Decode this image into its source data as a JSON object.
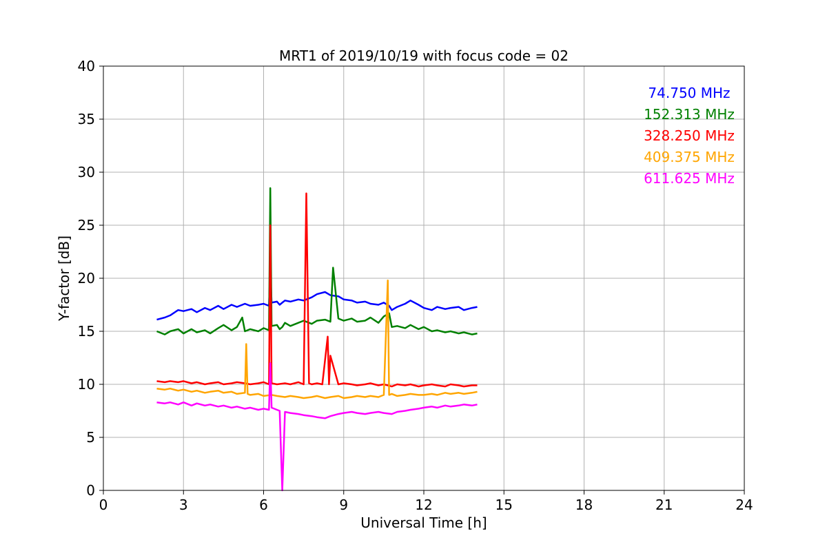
{
  "chart_data": {
    "type": "line",
    "title": "MRT1 of 2019/10/19 with focus code = 02",
    "xlabel": "Universal Time [h]",
    "ylabel": "Y-factor [dB]",
    "xlim": [
      0,
      24
    ],
    "ylim": [
      0,
      40
    ],
    "xticks": [
      0,
      3,
      6,
      9,
      12,
      15,
      18,
      21,
      24
    ],
    "yticks": [
      0,
      5,
      10,
      15,
      20,
      25,
      30,
      35,
      40
    ],
    "grid": true,
    "legend_placement": "top-right",
    "series": [
      {
        "name": "74.750 MHz",
        "color": "#0000ff",
        "x": [
          2.0,
          2.3,
          2.5,
          2.8,
          3.0,
          3.3,
          3.5,
          3.8,
          4.0,
          4.3,
          4.5,
          4.8,
          5.0,
          5.3,
          5.5,
          5.8,
          6.0,
          6.2,
          6.25,
          6.3,
          6.5,
          6.6,
          6.7,
          6.8,
          7.0,
          7.3,
          7.5,
          7.8,
          8.0,
          8.3,
          8.5,
          8.8,
          9.0,
          9.3,
          9.5,
          9.8,
          10.0,
          10.3,
          10.5,
          10.7,
          10.8,
          11.0,
          11.3,
          11.5,
          11.8,
          12.0,
          12.3,
          12.5,
          12.8,
          13.0,
          13.3,
          13.5,
          13.8,
          14.0
        ],
        "y": [
          16.1,
          16.3,
          16.5,
          17.0,
          16.9,
          17.1,
          16.8,
          17.2,
          17.0,
          17.4,
          17.1,
          17.5,
          17.3,
          17.6,
          17.4,
          17.5,
          17.6,
          17.4,
          21.0,
          17.7,
          17.8,
          17.5,
          17.7,
          17.9,
          17.8,
          18.0,
          17.9,
          18.2,
          18.5,
          18.7,
          18.4,
          18.3,
          18.0,
          17.9,
          17.7,
          17.8,
          17.6,
          17.5,
          17.7,
          17.4,
          17.0,
          17.3,
          17.6,
          17.9,
          17.5,
          17.2,
          17.0,
          17.3,
          17.1,
          17.2,
          17.3,
          17.0,
          17.2,
          17.3
        ]
      },
      {
        "name": "152.313 MHz",
        "color": "#008000",
        "x": [
          2.0,
          2.3,
          2.5,
          2.8,
          3.0,
          3.3,
          3.5,
          3.8,
          4.0,
          4.3,
          4.5,
          4.8,
          5.0,
          5.2,
          5.3,
          5.5,
          5.8,
          6.0,
          6.2,
          6.25,
          6.3,
          6.5,
          6.6,
          6.7,
          6.8,
          7.0,
          7.3,
          7.5,
          7.8,
          8.0,
          8.3,
          8.5,
          8.6,
          8.8,
          9.0,
          9.3,
          9.5,
          9.8,
          10.0,
          10.3,
          10.5,
          10.7,
          10.8,
          11.0,
          11.3,
          11.5,
          11.8,
          12.0,
          12.3,
          12.5,
          12.8,
          13.0,
          13.3,
          13.5,
          13.8,
          14.0
        ],
        "y": [
          15.0,
          14.7,
          15.0,
          15.2,
          14.8,
          15.2,
          14.9,
          15.1,
          14.8,
          15.3,
          15.6,
          15.1,
          15.4,
          16.3,
          15.0,
          15.2,
          15.0,
          15.3,
          15.1,
          28.5,
          15.5,
          15.6,
          15.2,
          15.4,
          15.8,
          15.5,
          15.8,
          16.0,
          15.7,
          16.0,
          16.1,
          15.9,
          21.0,
          16.2,
          16.0,
          16.2,
          15.9,
          16.0,
          16.3,
          15.8,
          16.4,
          16.7,
          15.4,
          15.5,
          15.3,
          15.6,
          15.2,
          15.4,
          15.0,
          15.1,
          14.9,
          15.0,
          14.8,
          14.9,
          14.7,
          14.8
        ]
      },
      {
        "name": "328.250 MHz",
        "color": "#ff0000",
        "x": [
          2.0,
          2.3,
          2.5,
          2.8,
          3.0,
          3.3,
          3.5,
          3.8,
          4.0,
          4.3,
          4.5,
          4.8,
          5.0,
          5.3,
          5.5,
          5.8,
          6.0,
          6.2,
          6.25,
          6.3,
          6.5,
          6.8,
          7.0,
          7.3,
          7.5,
          7.6,
          7.7,
          7.8,
          8.0,
          8.2,
          8.4,
          8.45,
          8.5,
          8.8,
          9.0,
          9.3,
          9.5,
          9.8,
          10.0,
          10.3,
          10.5,
          10.8,
          11.0,
          11.3,
          11.5,
          11.8,
          12.0,
          12.3,
          12.5,
          12.8,
          13.0,
          13.3,
          13.5,
          13.8,
          14.0
        ],
        "y": [
          10.3,
          10.2,
          10.3,
          10.2,
          10.3,
          10.1,
          10.2,
          10.0,
          10.1,
          10.2,
          10.0,
          10.1,
          10.2,
          10.1,
          10.0,
          10.1,
          10.2,
          10.0,
          25.0,
          10.1,
          10.0,
          10.1,
          10.0,
          10.2,
          10.0,
          28.0,
          10.1,
          10.0,
          10.1,
          10.0,
          14.5,
          10.0,
          12.7,
          10.0,
          10.1,
          10.0,
          9.9,
          10.0,
          10.1,
          9.9,
          10.0,
          9.8,
          10.0,
          9.9,
          10.0,
          9.8,
          9.9,
          10.0,
          9.9,
          9.8,
          10.0,
          9.9,
          9.8,
          9.9,
          9.9
        ]
      },
      {
        "name": "409.375 MHz",
        "color": "#ffa500",
        "x": [
          2.0,
          2.3,
          2.5,
          2.8,
          3.0,
          3.3,
          3.5,
          3.8,
          4.0,
          4.3,
          4.5,
          4.8,
          5.0,
          5.3,
          5.35,
          5.4,
          5.5,
          5.8,
          6.0,
          6.3,
          6.5,
          6.8,
          7.0,
          7.3,
          7.5,
          7.8,
          8.0,
          8.3,
          8.5,
          8.8,
          9.0,
          9.3,
          9.5,
          9.8,
          10.0,
          10.3,
          10.5,
          10.65,
          10.7,
          10.8,
          11.0,
          11.3,
          11.5,
          11.8,
          12.0,
          12.3,
          12.5,
          12.8,
          13.0,
          13.3,
          13.5,
          13.8,
          14.0
        ],
        "y": [
          9.6,
          9.5,
          9.6,
          9.4,
          9.5,
          9.3,
          9.4,
          9.2,
          9.3,
          9.4,
          9.2,
          9.3,
          9.1,
          9.2,
          13.8,
          9.1,
          9.0,
          9.1,
          8.9,
          9.0,
          8.9,
          8.8,
          8.9,
          8.8,
          8.7,
          8.8,
          8.9,
          8.7,
          8.8,
          8.9,
          8.7,
          8.8,
          8.9,
          8.8,
          8.9,
          8.8,
          9.0,
          19.8,
          9.0,
          9.1,
          8.9,
          9.0,
          9.1,
          9.0,
          9.0,
          9.1,
          9.0,
          9.2,
          9.1,
          9.2,
          9.1,
          9.2,
          9.3
        ]
      },
      {
        "name": "611.625 MHz",
        "color": "#ff00ff",
        "x": [
          2.0,
          2.3,
          2.5,
          2.8,
          3.0,
          3.3,
          3.5,
          3.8,
          4.0,
          4.3,
          4.5,
          4.8,
          5.0,
          5.3,
          5.5,
          5.8,
          6.0,
          6.2,
          6.25,
          6.3,
          6.5,
          6.6,
          6.7,
          6.8,
          7.0,
          7.3,
          7.5,
          7.8,
          8.0,
          8.3,
          8.5,
          8.8,
          9.0,
          9.3,
          9.5,
          9.8,
          10.0,
          10.3,
          10.5,
          10.8,
          11.0,
          11.3,
          11.5,
          11.8,
          12.0,
          12.3,
          12.5,
          12.8,
          13.0,
          13.3,
          13.5,
          13.8,
          14.0
        ],
        "y": [
          8.3,
          8.2,
          8.3,
          8.1,
          8.3,
          8.0,
          8.2,
          8.0,
          8.1,
          7.9,
          8.0,
          7.8,
          7.9,
          7.7,
          7.8,
          7.6,
          7.7,
          7.6,
          12.0,
          7.8,
          7.6,
          7.5,
          0.0,
          7.4,
          7.3,
          7.2,
          7.1,
          7.0,
          6.9,
          6.8,
          7.0,
          7.2,
          7.3,
          7.4,
          7.3,
          7.2,
          7.3,
          7.4,
          7.3,
          7.2,
          7.4,
          7.5,
          7.6,
          7.7,
          7.8,
          7.9,
          7.8,
          8.0,
          7.9,
          8.0,
          8.1,
          8.0,
          8.1
        ]
      }
    ]
  }
}
